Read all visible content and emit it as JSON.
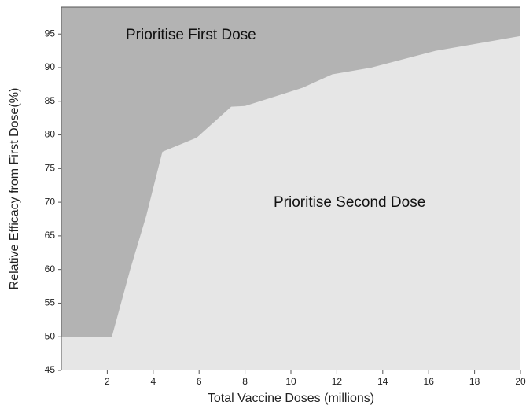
{
  "chart_data": {
    "type": "area",
    "x_label": "Total Vaccine Doses (millions)",
    "y_label": "Relative Efficacy from First Dose(%)",
    "x": [
      0,
      2.2,
      3,
      3.7,
      4.4,
      5.9,
      7.4,
      8,
      10.5,
      11.8,
      13.5,
      16.3,
      20
    ],
    "series": [
      {
        "color": "#e6e6e6",
        "values": [
          50,
          50,
          60,
          68,
          77.5,
          79.6,
          84.2,
          84.3,
          87,
          89,
          90,
          92.5,
          94.7
        ]
      }
    ],
    "fill_above": "#b3b3b3",
    "annotations": [
      "Prioritise First Dose",
      "Prioritise Second Dose"
    ],
    "xlim": [
      0,
      20
    ],
    "xticks": [
      2,
      4,
      6,
      8,
      10,
      12,
      14,
      16,
      18,
      20
    ],
    "ylim": [
      45,
      99
    ],
    "yticks": [
      45,
      50,
      55,
      60,
      65,
      70,
      75,
      80,
      85,
      90,
      95
    ]
  }
}
